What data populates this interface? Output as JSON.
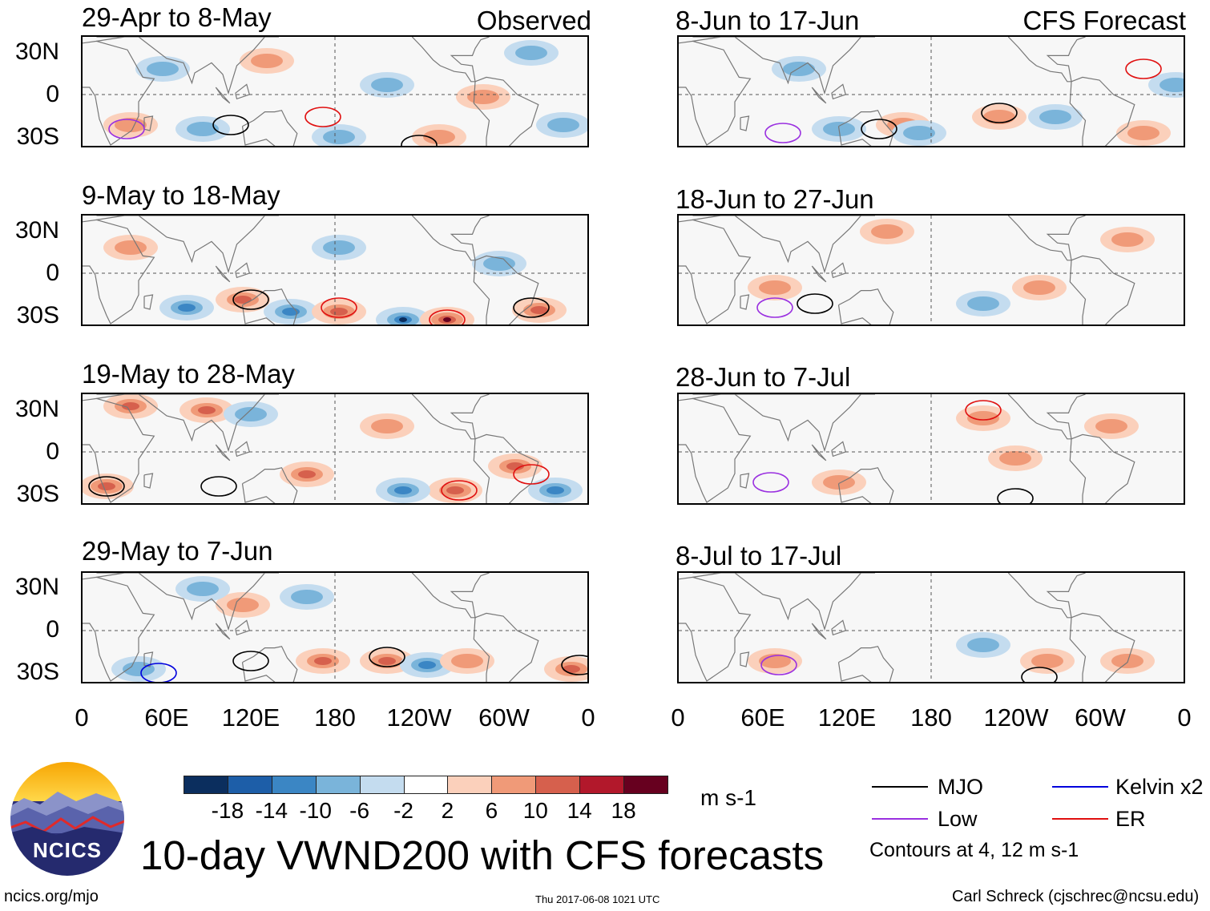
{
  "figure_title": "10-day VWND200 with CFS forecasts",
  "column_tags": {
    "observed": "Observed",
    "forecast": "CFS Forecast"
  },
  "observed_panels": [
    {
      "title": "29-Apr to 8-May"
    },
    {
      "title": "9-May to 18-May"
    },
    {
      "title": "19-May to 28-May"
    },
    {
      "title": "29-May to 7-Jun"
    }
  ],
  "forecast_panels": [
    {
      "title": "8-Jun to 17-Jun"
    },
    {
      "title": "18-Jun to 27-Jun"
    },
    {
      "title": "28-Jun to 7-Jul"
    },
    {
      "title": "8-Jul to 17-Jul"
    }
  ],
  "lat_labels": [
    "30N",
    "0",
    "30S"
  ],
  "lon_labels": [
    "0",
    "60E",
    "120E",
    "180",
    "120W",
    "60W",
    "0"
  ],
  "colorbar": {
    "unit": "m s-1",
    "ticks": [
      "-18",
      "-14",
      "-10",
      "-6",
      "-2",
      "2",
      "6",
      "10",
      "14",
      "18"
    ],
    "colors": [
      "#0b2e5e",
      "#1d5ea8",
      "#3b86c4",
      "#7ab4da",
      "#c4dcef",
      "#ffffff",
      "#fbd0bb",
      "#f09a78",
      "#d6604d",
      "#b2182b",
      "#67001f"
    ]
  },
  "legend": {
    "items": [
      {
        "label": "MJO",
        "color": "#000000"
      },
      {
        "label": "Kelvin x2",
        "color": "#0000dd"
      },
      {
        "label": "Low",
        "color": "#9a30e0"
      },
      {
        "label": "ER",
        "color": "#e01010"
      }
    ],
    "note": "Contours at 4, 12 m s-1"
  },
  "logo": {
    "text": "NCICS"
  },
  "footer": {
    "url": "ncics.org/mjo",
    "timestamp": "Thu 2017-06-08 1021 UTC",
    "credit": "Carl Schreck (cjschrec@ncsu.edu)"
  }
}
